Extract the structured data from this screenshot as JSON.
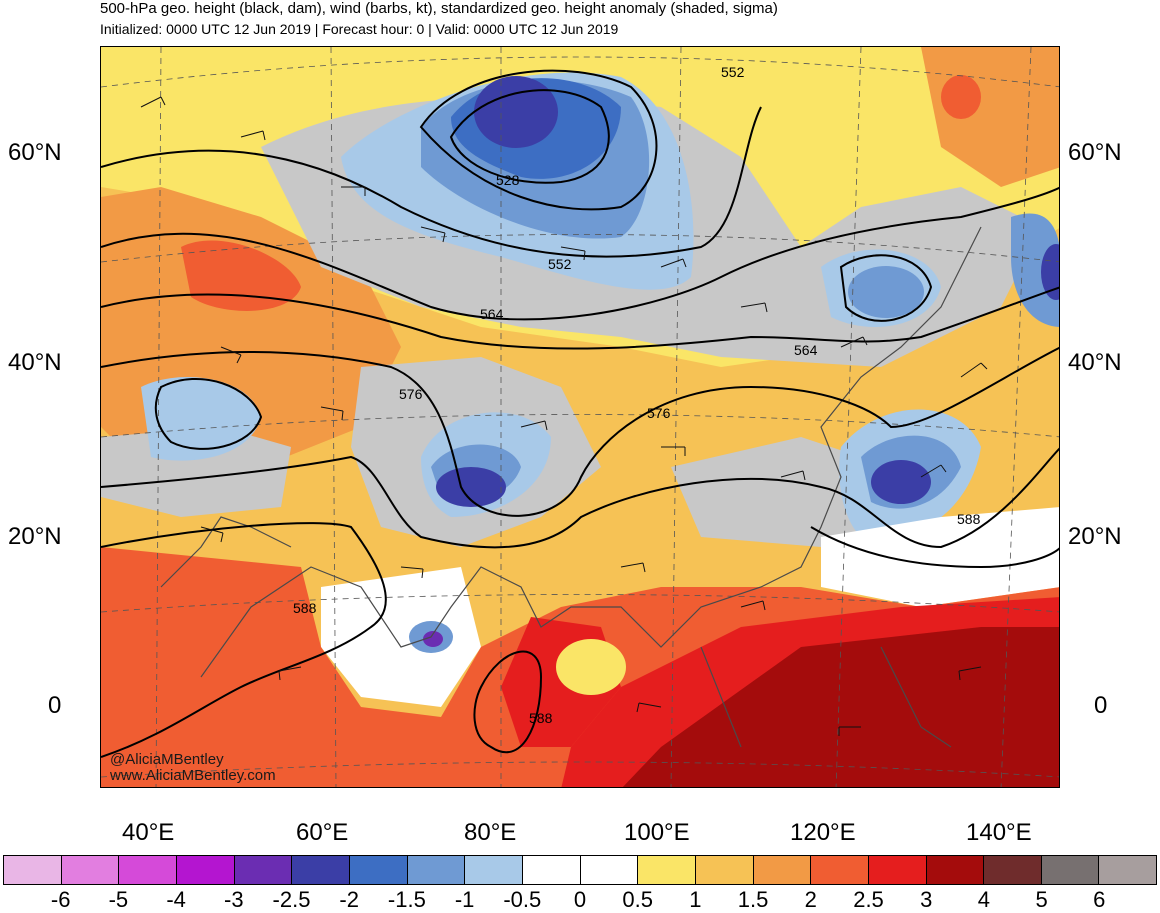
{
  "header": {
    "title": "500-hPa geo. height (black, dam), wind (barbs, kt), standardized geo. height anomaly (shaded, sigma)",
    "subtitle": "Initialized: 0000 UTC 12 Jun 2019 | Forecast hour: 0 | Valid: 0000 UTC 12 Jun 2019"
  },
  "map": {
    "lat_labels": [
      "60°N",
      "40°N",
      "20°N",
      "0"
    ],
    "lon_labels": [
      "40°E",
      "60°E",
      "80°E",
      "100°E",
      "120°E",
      "140°E"
    ],
    "contour_labels": [
      "552",
      "528",
      "552",
      "564",
      "564",
      "576",
      "576",
      "588",
      "588",
      "588"
    ],
    "credit": [
      "@AliciaMBentley",
      "www.AliciaMBentley.com"
    ]
  },
  "colorbar": {
    "labels": [
      "-6",
      "-5",
      "-4",
      "-3",
      "-2.5",
      "-2",
      "-1.5",
      "-1",
      "-0.5",
      "0",
      "0.5",
      "1",
      "1.5",
      "2",
      "2.5",
      "3",
      "4",
      "5",
      "6"
    ],
    "colors": [
      "#e9b6e6",
      "#e27ee0",
      "#d54ad9",
      "#b415d0",
      "#6b2db2",
      "#3b3ea6",
      "#3d6ec3",
      "#6f9ad3",
      "#a8c9e8",
      "#ffffff",
      "#ffffff",
      "#fae567",
      "#f6c255",
      "#f29a45",
      "#f05d32",
      "#e51e1e",
      "#a40c0c",
      "#6f2c2c",
      "#777070",
      "#a79e9e"
    ]
  }
}
